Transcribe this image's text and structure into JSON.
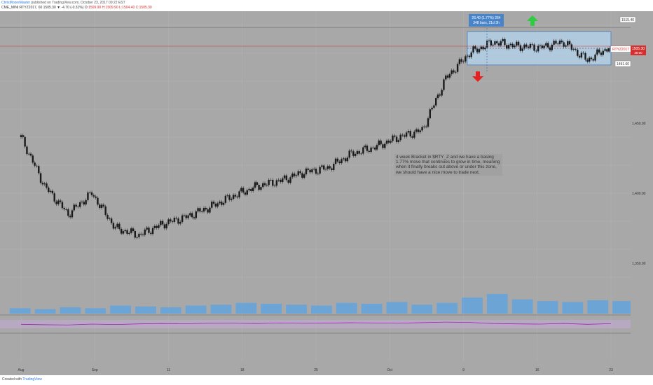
{
  "header": {
    "author": "ChrisMooreMaster",
    "published_line": " published on TradingView.com, October 23, 2017 09:22 EST",
    "symbol_line": "CME_MINI:RTYZ2017, 60  1505.30 ▼ -4.70 (-0.31%)  O:",
    "ohlc": "1509.90  H:1509.90  L:1504.40  C:1505.30"
  },
  "footer": {
    "created": "Created with ",
    "brand": "TradingView"
  },
  "measure_box": {
    "line1": "26.40 (1.77%) 264",
    "line2": "348 bars, 21d 3h"
  },
  "annotation": "4 week Bracket in $RTY_Z and we have a basing 1.77% move that continues to grow in time, meaning when it finally breaks out above or under this zone, we should have a nice move to trade next.",
  "price_tags": {
    "upper": "1515.40",
    "symbol": "RTYZ2017",
    "last": "1505.30",
    "countdown": "38:00",
    "lower": "1491.60"
  },
  "colors": {
    "background": "#a8a8a8",
    "candle": "#1a1a1a",
    "volume": "#5aa3e6",
    "rsi": "#9c27b0",
    "box_fill": "#b3cfe6",
    "up_arrow": "#2ecc40",
    "down_arrow": "#e62020",
    "price_line": "#d32f2f"
  },
  "icons": {
    "up": "green-up-arrow-icon",
    "down": "red-down-arrow-icon"
  },
  "chart_data": {
    "type": "line",
    "title": "",
    "series_label": "RTYZ2017 60",
    "x_ticks": [
      "Aug",
      "Sep",
      "11",
      "18",
      "25",
      "Oct",
      "9",
      "16",
      "23"
    ],
    "y_ticks": [
      "1,350.00",
      "1,400.00",
      "1,450.00",
      "1,500.00"
    ],
    "ylim": [
      1330,
      1530
    ],
    "x": [
      "Aug 01",
      "Aug 03",
      "Aug 07",
      "Aug 09",
      "Aug 11",
      "Aug 15",
      "Aug 18",
      "Aug 22",
      "Aug 25",
      "Aug 29",
      "Sep 01",
      "Sep 05",
      "Sep 08",
      "Sep 12",
      "Sep 15",
      "Sep 19",
      "Sep 22",
      "Sep 26",
      "Sep 28",
      "Oct 02",
      "Oct 05",
      "Oct 09",
      "Oct 12",
      "Oct 16",
      "Oct 19",
      "Oct 23"
    ],
    "y": [
      1440,
      1405,
      1385,
      1400,
      1375,
      1370,
      1378,
      1383,
      1390,
      1398,
      1405,
      1409,
      1415,
      1418,
      1428,
      1433,
      1440,
      1445,
      1482,
      1500,
      1508,
      1505,
      1504,
      1508,
      1495,
      1505
    ],
    "bracket": {
      "high": 1515.4,
      "low": 1491.6,
      "move_pct": 1.77,
      "bars": 348,
      "duration": "21d 3h"
    },
    "volume": [
      6,
      5,
      7,
      6,
      9,
      8,
      7,
      9,
      10,
      12,
      11,
      10,
      9,
      12,
      11,
      13,
      10,
      12,
      18,
      22,
      16,
      14,
      13,
      15,
      14,
      12
    ],
    "rsi": [
      48,
      44,
      42,
      50,
      46,
      52,
      55,
      53,
      57,
      58,
      55,
      60,
      57,
      59,
      62,
      60,
      58,
      63,
      68,
      65,
      55,
      52,
      50,
      56,
      48,
      54
    ],
    "grid": true,
    "legend": "none"
  }
}
